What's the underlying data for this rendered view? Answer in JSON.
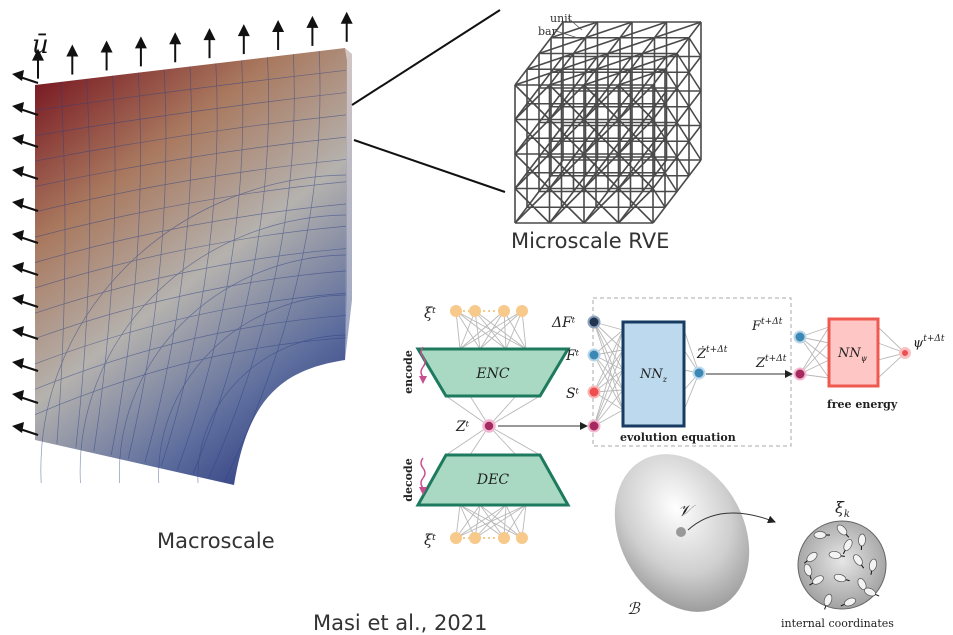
{
  "captions": {
    "microscale": "Microscale RVE",
    "macroscale": "Macroscale",
    "citation": "Masi et al., 2021"
  },
  "macro": {
    "displacement_label": "ū"
  },
  "rve": {
    "unit_label": "unit",
    "bar_label": "bar"
  },
  "network": {
    "xi_top": "ξᵗ",
    "xi_bottom": "ξᵗ",
    "encode": "encode",
    "decode": "decode",
    "enc": "ENC",
    "dec": "DEC",
    "z_latent": "Zᵗ",
    "inputs": [
      "ΔFᵗ",
      "Fᵗ",
      "Sᵗ"
    ],
    "nn_z": "NN",
    "nn_z_sub": "z",
    "z_dot": "Ż",
    "z_dot_sup": "t+Δt",
    "evolution": "evolution equation",
    "f_next": "F",
    "f_next_sup": "t+Δt",
    "z_next": "Z",
    "z_next_sup": "t+Δt",
    "nn_psi": "NN",
    "nn_psi_sub": "ψ",
    "psi": "ψ",
    "psi_sup": "t+Δt",
    "free_energy": "free energy"
  },
  "body_sketch": {
    "volume": "𝒱",
    "body": "ℬ",
    "xi_k": "ξ",
    "xi_k_sub": "k",
    "internal": "internal coordinates"
  },
  "colors": {
    "enc_fill": "#a9d9c3",
    "enc_stroke": "#1e7a5e",
    "node_orange": "#f7c98b",
    "node_navy": "#1f3550",
    "node_blue": "#3d87b5",
    "node_red": "#ee4f50",
    "node_magenta": "#a52a5f",
    "nnz_fill": "#bcd9ee",
    "nnz_stroke": "#173b61",
    "nnpsi_fill": "#ffc6c6",
    "nnpsi_stroke": "#ef5a50",
    "wave": "#c84e8f"
  }
}
